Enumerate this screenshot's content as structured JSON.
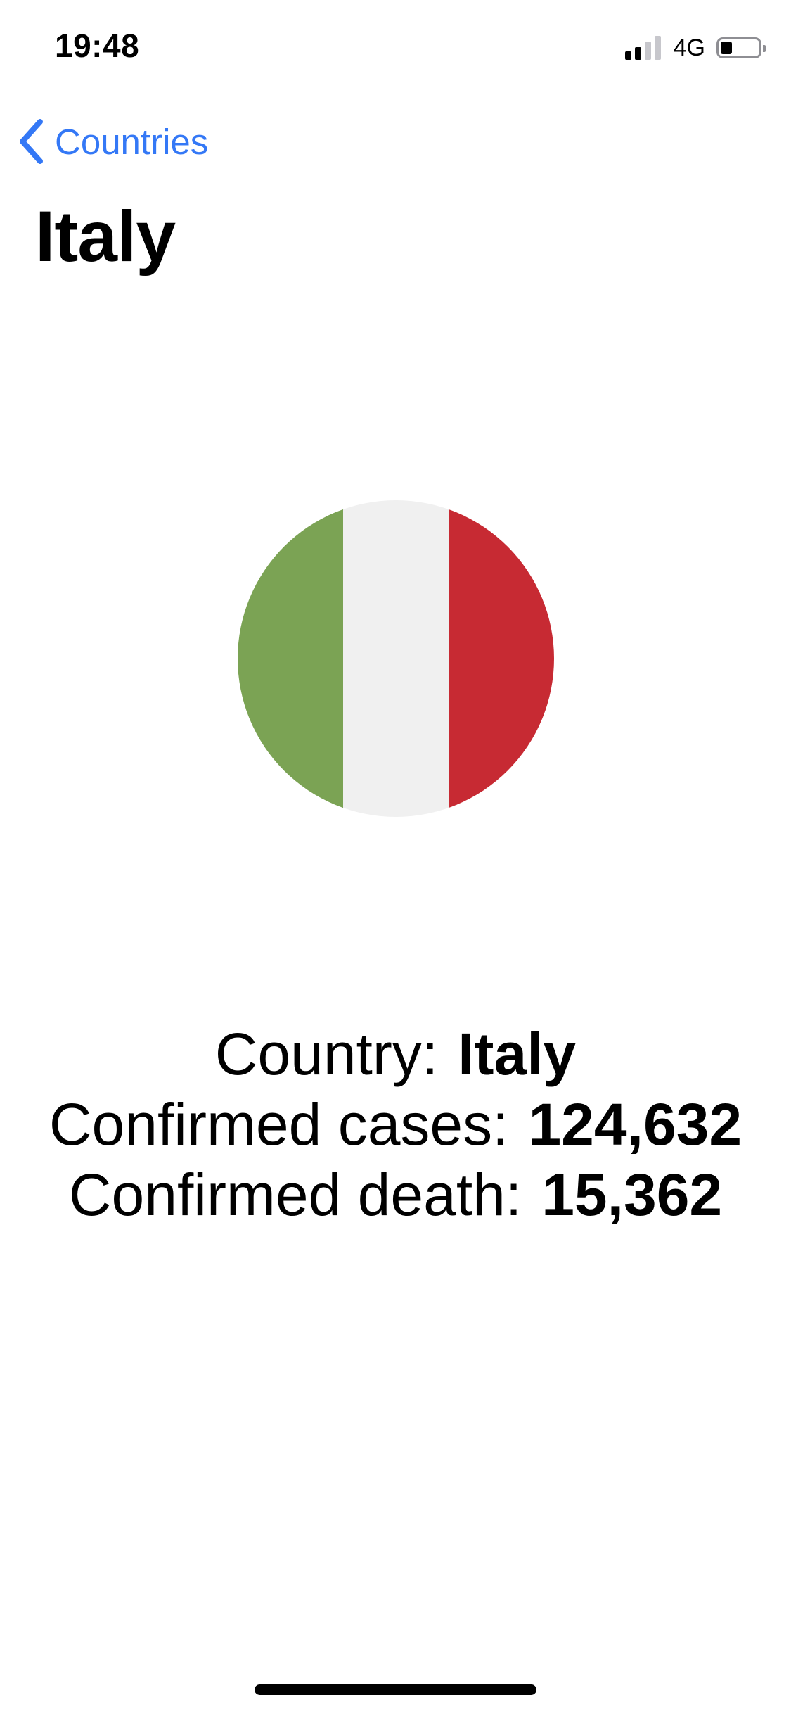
{
  "status_bar": {
    "time": "19:48",
    "network": "4G",
    "signal_bars_active": 2,
    "signal_bars_total": 4,
    "battery_level_fraction": 0.3
  },
  "nav": {
    "back_label": "Countries",
    "back_icon": "chevron-left-icon",
    "title": "Italy"
  },
  "flag": {
    "icon": "italy-flag-icon",
    "colors": [
      "#7ba354",
      "#f0f0f0",
      "#c72a33"
    ]
  },
  "info": {
    "country_label": "Country:",
    "country_value": "Italy",
    "cases_label": "Confirmed cases:",
    "cases_value": "124,632",
    "deaths_label": "Confirmed death:",
    "deaths_value": "15,362"
  },
  "theme": {
    "accent": "#3478f6"
  }
}
